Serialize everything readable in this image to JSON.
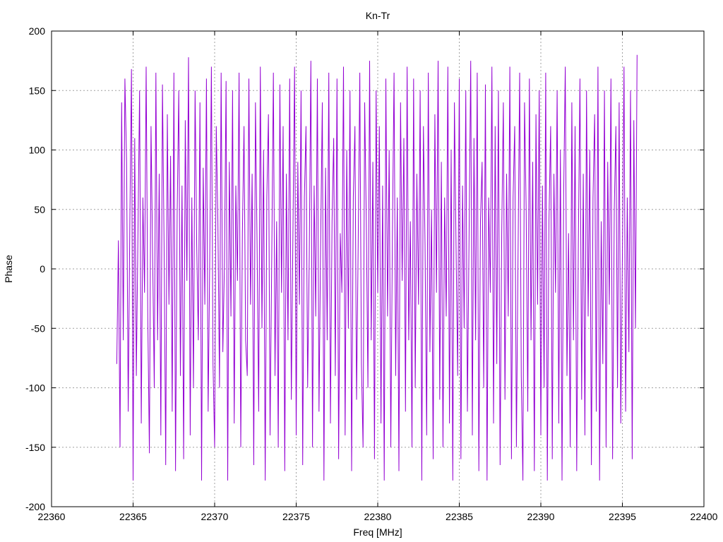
{
  "chart_data": {
    "type": "line",
    "title": "Kn-Tr",
    "xlabel": "Freq [MHz]",
    "ylabel": "Phase",
    "xlim": [
      22360,
      22400
    ],
    "ylim": [
      -200,
      200
    ],
    "xticks": [
      22360,
      22365,
      22370,
      22375,
      22380,
      22385,
      22390,
      22395,
      22400
    ],
    "yticks": [
      -200,
      -150,
      -100,
      -50,
      0,
      50,
      100,
      150,
      200
    ],
    "grid": true,
    "color": "#9400d3",
    "series": [
      {
        "name": "Kn-Tr",
        "x_start": 22364.0,
        "x_step": 0.1,
        "y": [
          -80,
          24,
          -150,
          140,
          -60,
          160,
          90,
          -120,
          40,
          168,
          -178,
          110,
          -90,
          30,
          150,
          -130,
          60,
          -20,
          170,
          -40,
          -155,
          120,
          10,
          -100,
          165,
          -60,
          80,
          -140,
          155,
          20,
          -165,
          130,
          -30,
          95,
          -120,
          165,
          -170,
          45,
          150,
          -90,
          70,
          -160,
          125,
          -10,
          178,
          -140,
          60,
          -100,
          150,
          20,
          -60,
          140,
          -178,
          85,
          -30,
          160,
          -120,
          10,
          170,
          -80,
          -150,
          120,
          40,
          -100,
          165,
          -70,
          5,
          158,
          -178,
          90,
          -40,
          150,
          -130,
          70,
          -10,
          165,
          -150,
          30,
          120,
          -60,
          -90,
          160,
          -30,
          80,
          -165,
          140,
          20,
          -120,
          170,
          -50,
          100,
          -178,
          60,
          130,
          -140,
          10,
          165,
          -90,
          40,
          -150,
          155,
          -20,
          120,
          -170,
          80,
          -60,
          160,
          -110,
          30,
          170,
          -140,
          90,
          -30,
          150,
          -165,
          60,
          120,
          -100,
          10,
          175,
          -150,
          70,
          -40,
          160,
          -120,
          20,
          140,
          -178,
          85,
          -60,
          165,
          -130,
          40,
          110,
          -90,
          160,
          -160,
          30,
          -20,
          170,
          -140,
          100,
          -50,
          150,
          -170,
          60,
          120,
          -110,
          20,
          165,
          -80,
          -150,
          140,
          40,
          -100,
          175,
          -60,
          90,
          -160,
          150,
          -20,
          120,
          -130,
          70,
          -178,
          160,
          -40,
          100,
          -150,
          30,
          165,
          -90,
          60,
          -170,
          140,
          -10,
          110,
          -120,
          170,
          -60,
          40,
          -150,
          160,
          -100,
          80,
          -30,
          150,
          -178,
          120,
          20,
          -140,
          165,
          -70,
          50,
          -160,
          130,
          -20,
          175,
          -110,
          90,
          -150,
          60,
          -40,
          170,
          -130,
          100,
          -178,
          140,
          20,
          -90,
          160,
          -160,
          70,
          -50,
          150,
          -120,
          30,
          175,
          -140,
          110,
          -60,
          165,
          -170,
          40,
          90,
          -100,
          155,
          -178,
          60,
          -20,
          170,
          -130,
          120,
          -80,
          150,
          -165,
          30,
          140,
          -110,
          80,
          -40,
          170,
          -160,
          60,
          120,
          -150,
          10,
          165,
          -90,
          -178,
          140,
          50,
          -120,
          160,
          -60,
          90,
          -170,
          130,
          -30,
          150,
          -140,
          70,
          -100,
          165,
          -178,
          40,
          120,
          -160,
          80,
          -20,
          150,
          -130,
          100,
          -178,
          60,
          170,
          -90,
          30,
          -150,
          140,
          -60,
          120,
          -170,
          20,
          160,
          -110,
          80,
          -140,
          150,
          -40,
          100,
          -165,
          60,
          130,
          -120,
          170,
          -178,
          40,
          -80,
          150,
          -150,
          90,
          -30,
          160,
          -160,
          50,
          120,
          -100,
          140,
          -130,
          10,
          170,
          -120,
          60,
          -70,
          150,
          -160,
          125,
          -50,
          180
        ]
      }
    ]
  }
}
